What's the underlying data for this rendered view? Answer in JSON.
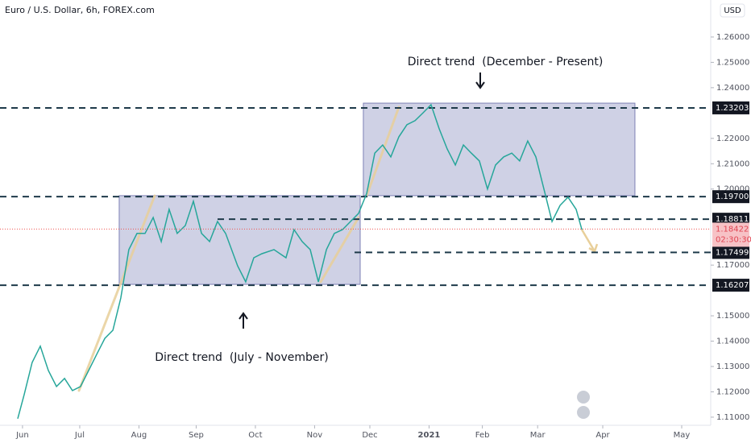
{
  "chart_data": {
    "type": "line",
    "title": "Euro / U.S. Dollar, 6h, FOREX.com",
    "currency": "USD",
    "color": "#26a69a",
    "x": [
      -2.4,
      0.85,
      4.9,
      9.0,
      13.1,
      17.2,
      21.3,
      25.3,
      29.4,
      33.5,
      37.6,
      41.7,
      45.8,
      49.8,
      53.9,
      58.0,
      62.1,
      66.2,
      70.3,
      74.3,
      78.4,
      82.5,
      86.6,
      90.7,
      94.8,
      98.8,
      102.9,
      109.0,
      113.1,
      117.2,
      121.3,
      127.4,
      133.5,
      137.6,
      141.7,
      145.8,
      149.9,
      154.0,
      158.0,
      162.1,
      166.2,
      170.3,
      174.4,
      178.5,
      182.5,
      186.6,
      190.7,
      194.8,
      198.9,
      203.0,
      207.0,
      211.1,
      215.2,
      219.3,
      223.4,
      227.4,
      231.5,
      235.6,
      239.7,
      243.8,
      247.9,
      251.9,
      256.0,
      260.1,
      264.2,
      268.3,
      272.4,
      276.4,
      280.5,
      283.4
    ],
    "values": [
      1.1094,
      1.1189,
      1.1316,
      1.138,
      1.1284,
      1.1221,
      1.1253,
      1.1205,
      1.1221,
      1.1284,
      1.1348,
      1.1411,
      1.1443,
      1.157,
      1.1761,
      1.1825,
      1.1825,
      1.1888,
      1.1793,
      1.192,
      1.1825,
      1.1856,
      1.1952,
      1.1825,
      1.1793,
      1.1872,
      1.1825,
      1.1697,
      1.1634,
      1.1729,
      1.1745,
      1.1761,
      1.1729,
      1.184,
      1.1793,
      1.1761,
      1.1634,
      1.1761,
      1.1825,
      1.184,
      1.1872,
      1.1904,
      1.1983,
      1.2142,
      1.2174,
      1.2127,
      1.2206,
      1.2254,
      1.227,
      1.2301,
      1.2333,
      1.2238,
      1.2158,
      1.2095,
      1.2174,
      1.2142,
      1.2111,
      1.2,
      1.2095,
      1.2127,
      1.2142,
      1.2111,
      1.219,
      1.2127,
      1.2,
      1.1872,
      1.1936,
      1.1968,
      1.192,
      1.184
    ],
    "xlim": [
      -11.4,
      348.7
    ],
    "ylim": [
      1.1068,
      1.2746
    ],
    "xticks": [
      {
        "value": 0,
        "label": "Jun"
      },
      {
        "value": 29,
        "label": "Jul"
      },
      {
        "value": 59,
        "label": "Aug"
      },
      {
        "value": 88,
        "label": "Sep"
      },
      {
        "value": 118,
        "label": "Oct"
      },
      {
        "value": 148,
        "label": "Nov"
      },
      {
        "value": 176,
        "label": "Dec"
      },
      {
        "value": 206,
        "label": "2021"
      },
      {
        "value": 233,
        "label": "Feb"
      },
      {
        "value": 261,
        "label": "Mar"
      },
      {
        "value": 294,
        "label": "Apr"
      },
      {
        "value": 334,
        "label": "May"
      }
    ],
    "yticks": [
      {
        "value": 1.26,
        "label": "1.26000"
      },
      {
        "value": 1.25,
        "label": "1.25000"
      },
      {
        "value": 1.24,
        "label": "1.24000"
      },
      {
        "value": 1.22,
        "label": "1.22000"
      },
      {
        "value": 1.21,
        "label": "1.21000"
      },
      {
        "value": 1.2,
        "label": "1.20000"
      },
      {
        "value": 1.17,
        "label": "1.17000"
      },
      {
        "value": 1.15,
        "label": "1.15000"
      },
      {
        "value": 1.14,
        "label": "1.14000"
      },
      {
        "value": 1.13,
        "label": "1.13000"
      },
      {
        "value": 1.12,
        "label": "1.12000"
      },
      {
        "value": 1.11,
        "label": "1.11000"
      }
    ],
    "levels": [
      {
        "value": 1.23203,
        "label": "1.23203"
      },
      {
        "value": 1.197,
        "label": "1.19700"
      },
      {
        "value": 1.18811,
        "label": "1.18811"
      },
      {
        "value": 1.17499,
        "label": "1.17499"
      },
      {
        "value": 1.16207,
        "label": "1.16207"
      }
    ],
    "last_price": {
      "value": 1.18422,
      "label": "1.18422"
    },
    "countdown": "02:30:30",
    "zones": [
      {
        "start": 49.0,
        "end": 171.1,
        "top": 1.1974,
        "bottom": 1.1624
      },
      {
        "start": 172.7,
        "end": 310.3,
        "top": 1.2339,
        "bottom": 1.1974
      }
    ],
    "annotations": [
      "Direct trend  (December - Present)",
      "Direct trend  (July - November)"
    ]
  }
}
